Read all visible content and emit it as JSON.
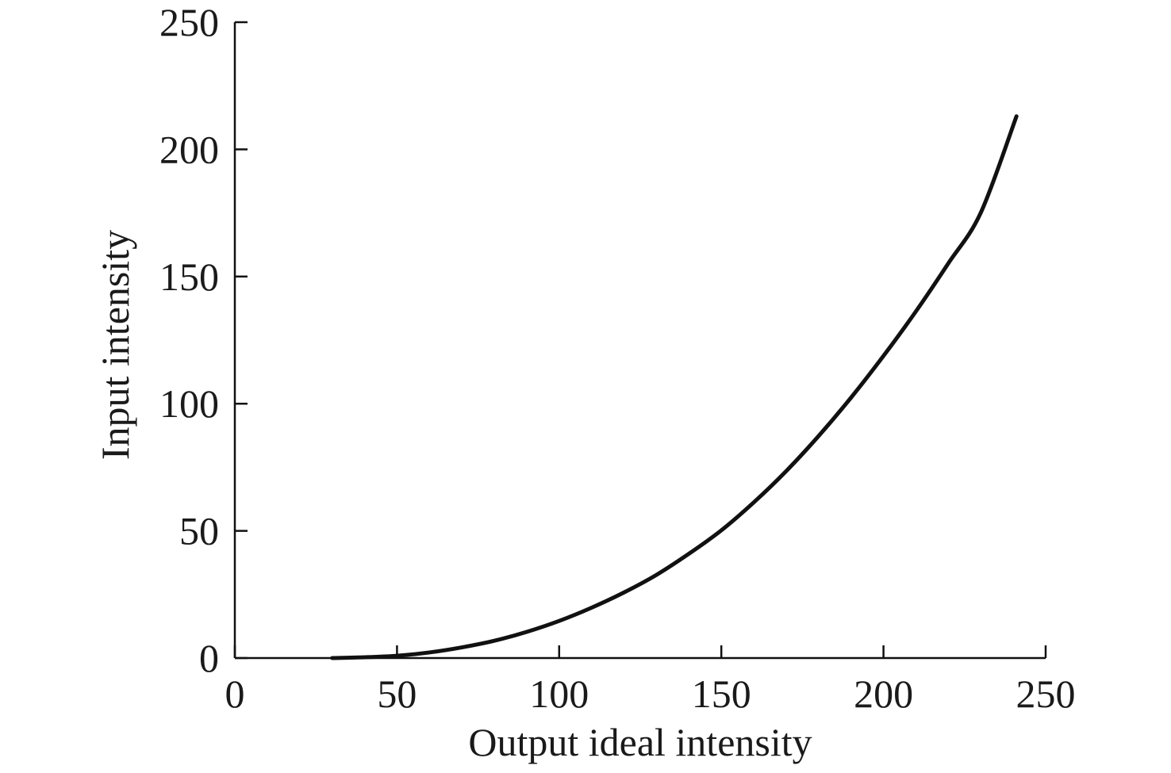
{
  "chart_data": {
    "type": "line",
    "title": "",
    "xlabel": "Output ideal intensity",
    "ylabel": "Input intensity",
    "xlim": [
      0,
      250
    ],
    "ylim": [
      0,
      250
    ],
    "x_ticks": [
      0,
      50,
      100,
      150,
      200,
      250
    ],
    "y_ticks": [
      0,
      50,
      100,
      150,
      200,
      250
    ],
    "x_tick_labels": [
      "0",
      "50",
      "100",
      "150",
      "200",
      "250"
    ],
    "y_tick_labels": [
      "0",
      "50",
      "100",
      "150",
      "200",
      "250"
    ],
    "grid": false,
    "legend": "none",
    "series": [
      {
        "color": "#111111",
        "x": [
          30,
          40,
          50,
          60,
          70,
          80,
          90,
          100,
          110,
          120,
          130,
          140,
          150,
          160,
          170,
          180,
          190,
          200,
          210,
          220,
          230,
          241
        ],
        "y": [
          0,
          0.3,
          0.9,
          2.2,
          4.2,
          6.8,
          10.3,
          14.6,
          19.8,
          25.8,
          32.7,
          41.0,
          50.2,
          61.2,
          73.5,
          87.3,
          102.4,
          118.8,
          136.3,
          155.2,
          175.1,
          213
        ]
      }
    ]
  }
}
